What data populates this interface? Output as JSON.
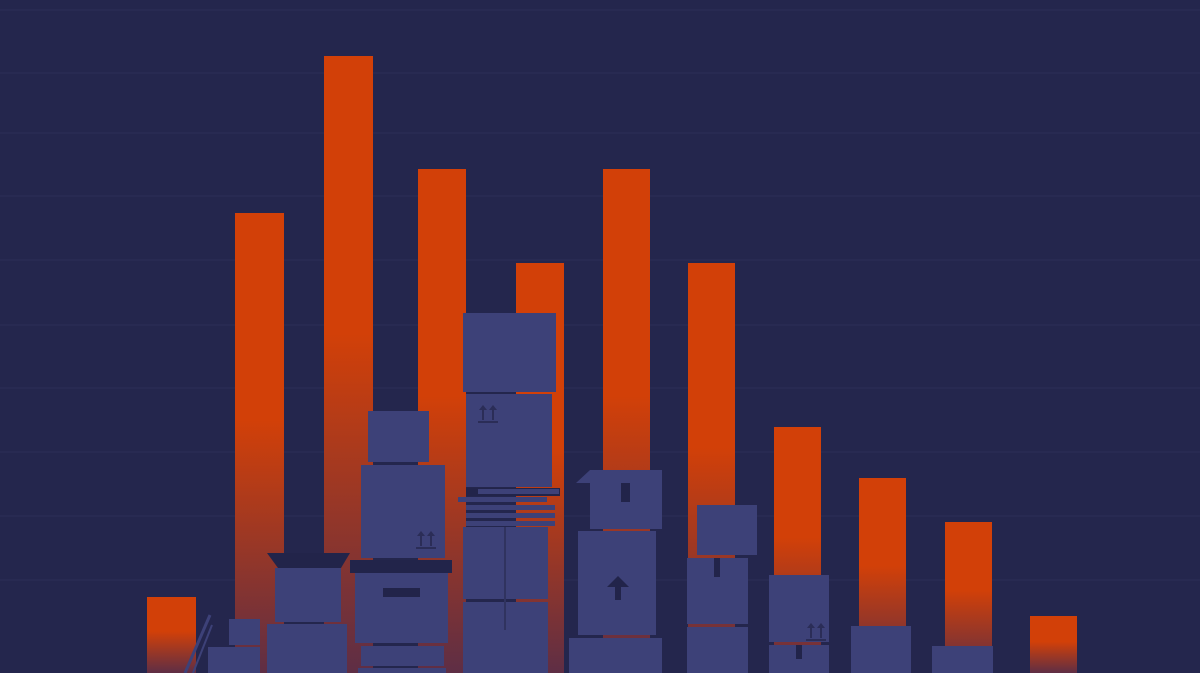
{
  "colors": {
    "background": "#24264d",
    "grid_line": "#2c2e58",
    "bar_top": "#d24008",
    "bar_bottom": "#5e2e45",
    "box_fill": "#3d4178",
    "box_dark": "#22244a",
    "box_seam": "#30335f",
    "box_icon": "#2b2d57"
  },
  "bars": {
    "relative_heights": [
      0.12,
      0.73,
      0.98,
      0.8,
      0.65,
      0.8,
      0.65,
      0.39,
      0.31,
      0.24,
      0.09
    ]
  },
  "icons": [
    "this-side-up-icon",
    "up-arrow-icon"
  ]
}
